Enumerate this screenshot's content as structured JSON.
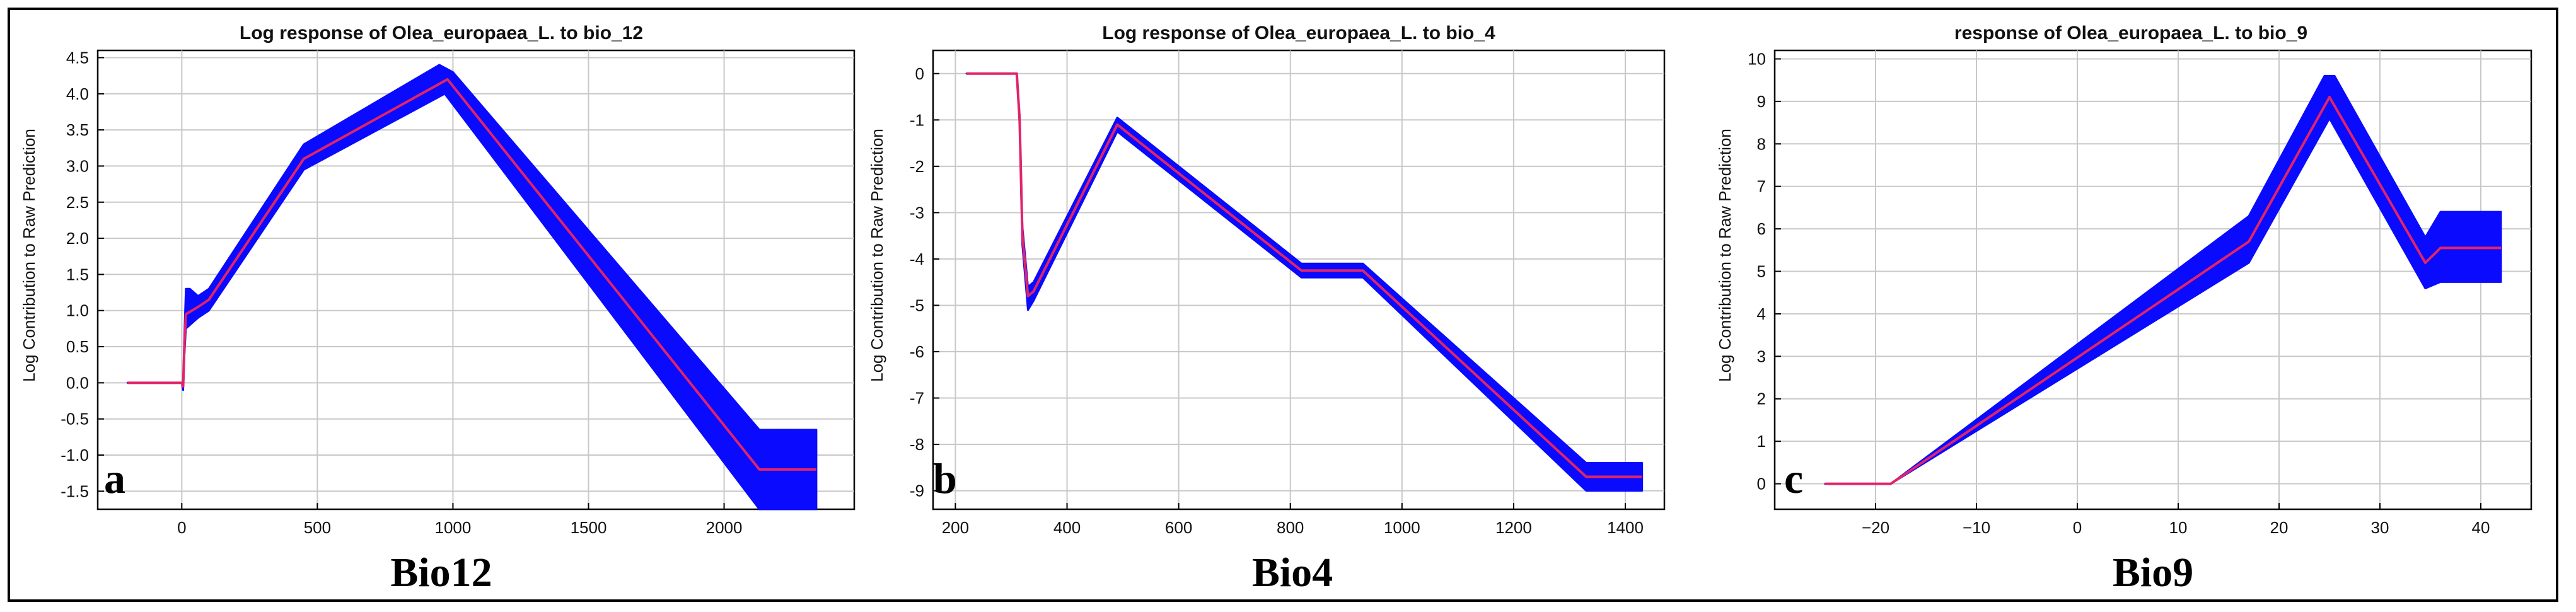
{
  "colors": {
    "band": "#0a0aff",
    "mean": "#e0246a",
    "grid": "#c8c8c8",
    "axis": "#000000"
  },
  "chart_data": [
    {
      "type": "line",
      "panel_label": "a",
      "title": "Log response of Olea_europaea_L. to bio_12",
      "xlabel": "Bio12",
      "ylabel": "Log Contribution to Raw Prediction",
      "xlim": [
        -310,
        2480
      ],
      "ylim": [
        -1.75,
        4.6
      ],
      "xticks": [
        0,
        500,
        1000,
        1500,
        2000
      ],
      "yticks": [
        -1.5,
        -1.0,
        -0.5,
        0.0,
        0.5,
        1.0,
        1.5,
        2.0,
        2.5,
        3.0,
        3.5,
        4.0,
        4.5
      ],
      "ytick_labels": [
        "-1.5",
        "-1.0",
        "-0.5",
        "0.0",
        "0.5",
        "1.0",
        "1.5",
        "2.0",
        "2.5",
        "3.0",
        "3.5",
        "4.0",
        "4.5"
      ],
      "series": [
        {
          "role": "mean",
          "x": [
            -200,
            0,
            5,
            10,
            15,
            60,
            100,
            450,
            980,
            2130,
            2340
          ],
          "y": [
            0.0,
            0.0,
            -0.05,
            0.55,
            0.95,
            1.05,
            1.15,
            3.1,
            4.2,
            -1.2,
            -1.2
          ]
        },
        {
          "role": "upper",
          "x": [
            -200,
            0,
            5,
            10,
            15,
            30,
            60,
            100,
            450,
            950,
            1000,
            2130,
            2340
          ],
          "y": [
            0.0,
            0.0,
            0.0,
            0.7,
            1.3,
            1.3,
            1.2,
            1.3,
            3.3,
            4.4,
            4.3,
            -0.65,
            -0.65
          ]
        },
        {
          "role": "lower",
          "x": [
            -200,
            0,
            5,
            10,
            15,
            60,
            100,
            450,
            970,
            2130,
            2340
          ],
          "y": [
            0.0,
            0.0,
            -0.1,
            0.4,
            0.75,
            0.9,
            1.0,
            2.95,
            4.0,
            -1.75,
            -1.75
          ]
        }
      ]
    },
    {
      "type": "line",
      "panel_label": "b",
      "title": "Log response of Olea_europaea_L. to bio_4",
      "xlabel": "Bio4",
      "ylabel": "Log Contribution to Raw Prediction",
      "xlim": [
        160,
        1470
      ],
      "ylim": [
        -9.4,
        0.5
      ],
      "xticks": [
        200,
        400,
        600,
        800,
        1000,
        1200,
        1400
      ],
      "yticks": [
        -9,
        -8,
        -7,
        -6,
        -5,
        -4,
        -3,
        -2,
        -1,
        0
      ],
      "ytick_labels": [
        "-9",
        "-8",
        "-7",
        "-6",
        "-5",
        "-4",
        "-3",
        "-2",
        "-1",
        "0"
      ],
      "series": [
        {
          "role": "mean",
          "x": [
            220,
            310,
            315,
            320,
            330,
            340,
            490,
            820,
            930,
            1330,
            1430
          ],
          "y": [
            0.0,
            0.0,
            -1.0,
            -3.5,
            -4.8,
            -4.7,
            -1.1,
            -4.25,
            -4.25,
            -8.7,
            -8.7
          ]
        },
        {
          "role": "upper",
          "x": [
            220,
            310,
            315,
            320,
            330,
            340,
            490,
            820,
            930,
            1330,
            1430
          ],
          "y": [
            0.0,
            0.0,
            -0.9,
            -3.3,
            -4.6,
            -4.5,
            -0.95,
            -4.1,
            -4.1,
            -8.4,
            -8.4
          ]
        },
        {
          "role": "lower",
          "x": [
            220,
            310,
            315,
            320,
            330,
            340,
            490,
            820,
            930,
            1330,
            1430
          ],
          "y": [
            0.0,
            0.0,
            -1.1,
            -3.7,
            -5.1,
            -4.9,
            -1.25,
            -4.4,
            -4.4,
            -9.0,
            -9.0
          ]
        }
      ]
    },
    {
      "type": "line",
      "panel_label": "c",
      "title": "response of Olea_europaea_L. to bio_9",
      "xlabel": "Bio9",
      "ylabel": "Log Contribution to Raw Prediction",
      "xlim": [
        -30,
        45
      ],
      "ylim": [
        -0.6,
        10.2
      ],
      "xticks": [
        -20,
        -10,
        0,
        10,
        20,
        30,
        40
      ],
      "xtick_labels": [
        "−20",
        "−10",
        "0",
        "10",
        "20",
        "30",
        "40"
      ],
      "yticks": [
        0,
        1,
        2,
        3,
        4,
        5,
        6,
        7,
        8,
        9,
        10
      ],
      "ytick_labels": [
        "0",
        "1",
        "2",
        "3",
        "4",
        "5",
        "6",
        "7",
        "8",
        "9",
        "10"
      ],
      "series": [
        {
          "role": "mean",
          "x": [
            -25,
            -18.5,
            17,
            25,
            34.5,
            36,
            42
          ],
          "y": [
            0.0,
            0.0,
            5.7,
            9.1,
            5.2,
            5.55,
            5.55
          ]
        },
        {
          "role": "upper",
          "x": [
            -25,
            -18.5,
            17,
            24.5,
            25.5,
            34.5,
            36,
            42
          ],
          "y": [
            0.0,
            0.0,
            6.3,
            9.6,
            9.6,
            5.8,
            6.4,
            6.4
          ]
        },
        {
          "role": "lower",
          "x": [
            -25,
            -18.5,
            17,
            25,
            34.5,
            36,
            42
          ],
          "y": [
            0.0,
            0.0,
            5.2,
            8.6,
            4.6,
            4.75,
            4.75
          ]
        }
      ]
    }
  ]
}
